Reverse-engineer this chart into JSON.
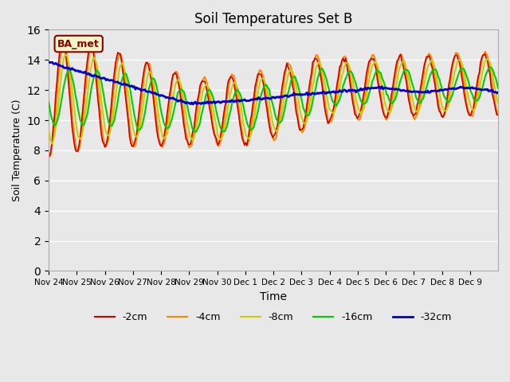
{
  "title": "Soil Temperatures Set B",
  "xlabel": "Time",
  "ylabel": "Soil Temperature (C)",
  "ylim": [
    0,
    16
  ],
  "yticks": [
    0,
    2,
    4,
    6,
    8,
    10,
    12,
    14,
    16
  ],
  "plot_bg_color": "#e8e8e8",
  "annotation_text": "BA_met",
  "annotation_bg": "#f5f5c8",
  "annotation_border": "#8b0000",
  "series": {
    "-2cm": {
      "color": "#cc0000",
      "lw": 1.2
    },
    "-4cm": {
      "color": "#ff8800",
      "lw": 1.5
    },
    "-8cm": {
      "color": "#cccc00",
      "lw": 1.5
    },
    "-16cm": {
      "color": "#00cc00",
      "lw": 1.5
    },
    "-32cm": {
      "color": "#0000cc",
      "lw": 2.0
    }
  },
  "xtick_labels": [
    "Nov 24",
    "Nov 25",
    "Nov 26",
    "Nov 27",
    "Nov 28",
    "Nov 29",
    "Nov 30",
    "Dec 1",
    "Dec 2",
    "Dec 3",
    "Dec 4",
    "Dec 5",
    "Dec 6",
    "Dec 7",
    "Dec 8",
    "Dec 9"
  ],
  "n_points": 384,
  "n_days": 16
}
